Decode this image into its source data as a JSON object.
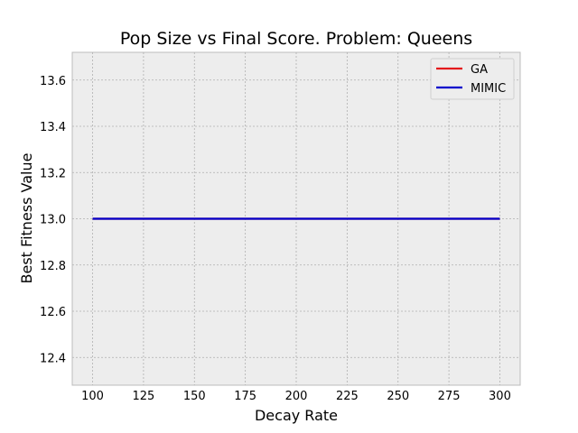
{
  "chart_data": {
    "type": "line",
    "title": "Pop Size vs Final Score.  Problem: Queens",
    "xlabel": "Decay Rate",
    "ylabel": "Best Fitness Value",
    "x": [
      100,
      150,
      200,
      250,
      300
    ],
    "series": [
      {
        "name": "GA",
        "color": "#e41a1c",
        "values": [
          13.0,
          13.0,
          13.0,
          13.0,
          13.0
        ]
      },
      {
        "name": "MIMIC",
        "color": "#0000cc",
        "values": [
          13.0,
          13.0,
          13.0,
          13.0,
          13.0
        ]
      }
    ],
    "xlim": [
      90,
      310
    ],
    "ylim": [
      12.28,
      13.72
    ],
    "xticks": [
      100,
      125,
      150,
      175,
      200,
      225,
      250,
      275,
      300
    ],
    "yticks": [
      12.4,
      12.6,
      12.8,
      13.0,
      13.2,
      13.4,
      13.6
    ],
    "grid": true,
    "legend_position": "top-right",
    "plot_background": "#ededed"
  }
}
